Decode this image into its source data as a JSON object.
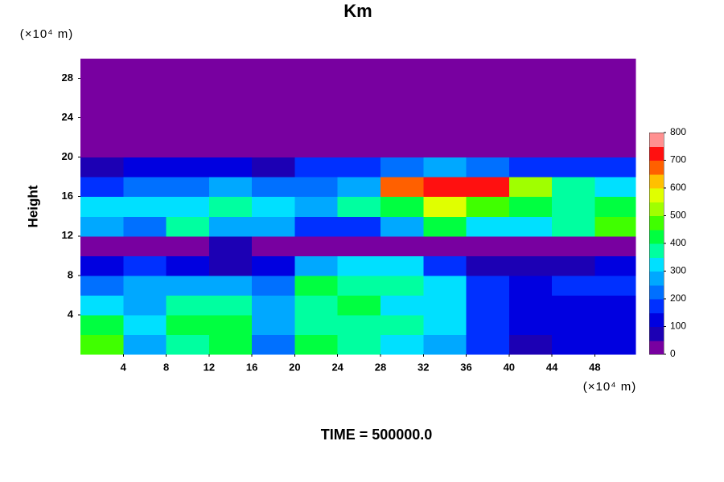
{
  "chart_data": {
    "type": "heatmap",
    "title": "Km",
    "y_label": "Height",
    "y_unit_label": "(×10⁴ m)",
    "x_unit_label": "(×10⁴ m)",
    "footer": "TIME = 500000.0",
    "xbins": [
      0,
      4,
      8,
      12,
      16,
      20,
      24,
      28,
      32,
      36,
      40,
      44,
      48,
      51.8
    ],
    "ybins": [
      0,
      2,
      4,
      6,
      8,
      10,
      12,
      14,
      16,
      18,
      20,
      22,
      24,
      26,
      28,
      30
    ],
    "z": [
      [
        450,
        250,
        350,
        400,
        200,
        400,
        350,
        300,
        250,
        150,
        50,
        100,
        100
      ],
      [
        400,
        300,
        400,
        400,
        250,
        350,
        350,
        350,
        300,
        150,
        100,
        100,
        120
      ],
      [
        300,
        250,
        350,
        350,
        250,
        350,
        400,
        300,
        300,
        150,
        130,
        120,
        130
      ],
      [
        200,
        250,
        250,
        250,
        200,
        400,
        350,
        350,
        300,
        150,
        100,
        150,
        180
      ],
      [
        100,
        150,
        100,
        80,
        100,
        250,
        300,
        300,
        150,
        80,
        60,
        80,
        100
      ],
      [
        0,
        0,
        0,
        50,
        0,
        0,
        0,
        0,
        0,
        0,
        0,
        0,
        0
      ],
      [
        250,
        200,
        350,
        250,
        250,
        150,
        150,
        250,
        400,
        300,
        300,
        350,
        450
      ],
      [
        300,
        300,
        300,
        350,
        300,
        250,
        350,
        400,
        550,
        450,
        400,
        350,
        400
      ],
      [
        150,
        200,
        200,
        250,
        200,
        200,
        250,
        650,
        700,
        700,
        500,
        350,
        300
      ],
      [
        50,
        100,
        100,
        100,
        50,
        150,
        150,
        200,
        250,
        200,
        150,
        150,
        150
      ],
      [
        0,
        0,
        0,
        0,
        0,
        0,
        0,
        0,
        0,
        0,
        0,
        0,
        0
      ],
      [
        0,
        0,
        0,
        0,
        0,
        0,
        0,
        0,
        0,
        0,
        0,
        0,
        0
      ],
      [
        0,
        0,
        0,
        0,
        0,
        0,
        0,
        0,
        0,
        0,
        0,
        0,
        0
      ],
      [
        0,
        0,
        0,
        0,
        0,
        0,
        0,
        0,
        0,
        0,
        0,
        0,
        0
      ],
      [
        0,
        0,
        0,
        0,
        0,
        0,
        0,
        0,
        0,
        0,
        0,
        0,
        0
      ]
    ],
    "xlim": [
      0,
      51.8
    ],
    "ylim": [
      0,
      30
    ],
    "xticks": [
      4,
      8,
      12,
      16,
      20,
      24,
      28,
      32,
      36,
      40,
      44,
      48
    ],
    "yticks": [
      4,
      8,
      12,
      16,
      20,
      24,
      28
    ],
    "clim": [
      0,
      800
    ],
    "cticks": [
      0,
      100,
      200,
      300,
      400,
      500,
      600,
      700,
      800
    ],
    "colorscale": [
      "#7800a0",
      "#1c00b4",
      "#0000e0",
      "#0030ff",
      "#0070ff",
      "#00a8ff",
      "#00e0ff",
      "#00ffa0",
      "#00ff40",
      "#40ff00",
      "#a0ff00",
      "#e0ff00",
      "#ffc000",
      "#ff6000",
      "#ff1010",
      "#ff9090"
    ],
    "grid": false
  }
}
